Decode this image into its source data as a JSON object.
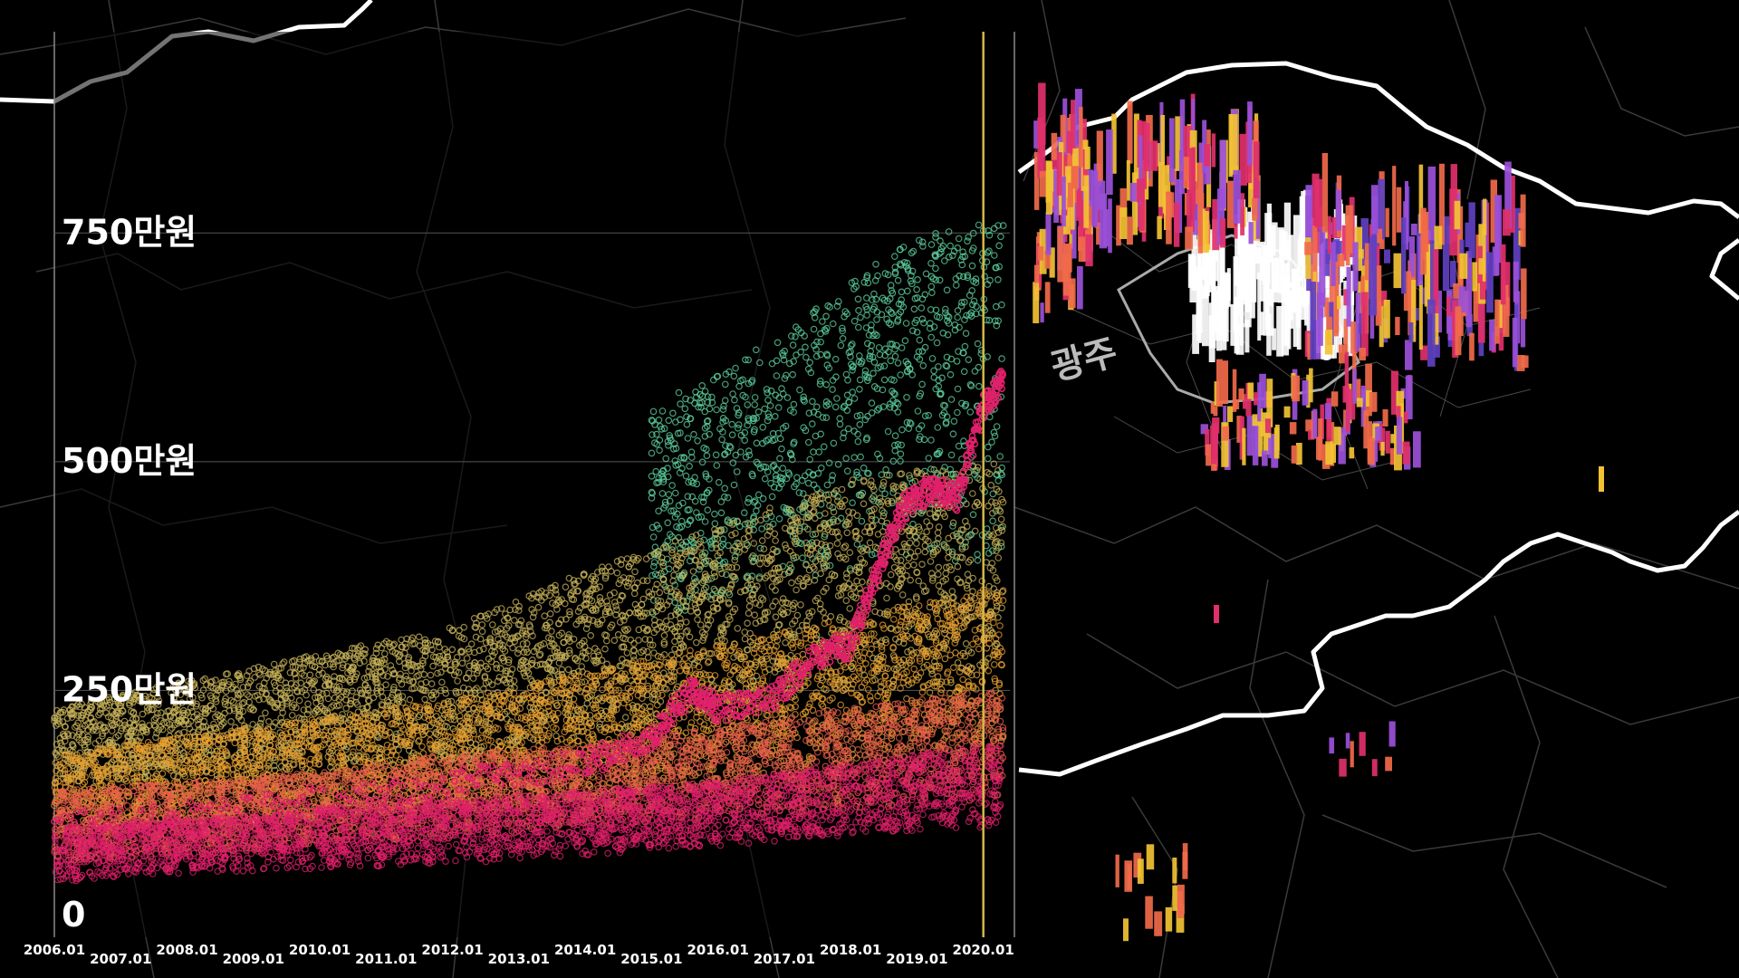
{
  "map": {
    "city_label": "광주",
    "background": "#000000",
    "boundary_color": "#ffffff",
    "district_line_color": "#3a3a3a"
  },
  "colors": {
    "high": "#5fd3a0",
    "mid_high": "#c9b45a",
    "mid": "#e8a030",
    "low": "#e8604a",
    "lowest": "#e0206a",
    "trend": "#e0206a",
    "marker": "#d4b84a",
    "bar_palette": [
      "#ffffff",
      "#f2c233",
      "#f06a4a",
      "#e0306a",
      "#9a50d8",
      "#6040c0"
    ]
  },
  "chart_data": {
    "type": "scatter",
    "title": "",
    "xlabel": "",
    "ylabel": "",
    "x_ticks": [
      "2006.01",
      "2007.01",
      "2008.01",
      "2009.01",
      "2010.01",
      "2011.01",
      "2012.01",
      "2013.01",
      "2014.01",
      "2015.01",
      "2016.01",
      "2017.01",
      "2018.01",
      "2019.01",
      "2020.01"
    ],
    "y_ticks": [
      {
        "value": 0,
        "label": "0"
      },
      {
        "value": 250,
        "label": "250만원"
      },
      {
        "value": 500,
        "label": "500만원"
      },
      {
        "value": 750,
        "label": "750만원"
      }
    ],
    "xlim": [
      2006.0,
      2020.4
    ],
    "ylim": [
      0,
      970
    ],
    "highlight_x": 2020.0,
    "grid": true,
    "series": [
      {
        "color_key": "high",
        "band": [
          [
            2015.0,
            330,
            560
          ],
          [
            2016.0,
            340,
            600
          ],
          [
            2017.0,
            370,
            640
          ],
          [
            2018.0,
            380,
            700
          ],
          [
            2019.0,
            400,
            750
          ],
          [
            2020.0,
            380,
            760
          ]
        ]
      },
      {
        "color_key": "mid_high",
        "band": [
          [
            2006.0,
            150,
            230
          ],
          [
            2008.0,
            150,
            260
          ],
          [
            2010.0,
            160,
            290
          ],
          [
            2012.0,
            170,
            320
          ],
          [
            2014.0,
            200,
            380
          ],
          [
            2016.0,
            230,
            430
          ],
          [
            2018.0,
            250,
            480
          ],
          [
            2020.0,
            260,
            500
          ]
        ]
      },
      {
        "color_key": "mid",
        "band": [
          [
            2006.0,
            90,
            180
          ],
          [
            2008.0,
            100,
            200
          ],
          [
            2010.0,
            110,
            220
          ],
          [
            2012.0,
            120,
            240
          ],
          [
            2014.0,
            130,
            270
          ],
          [
            2016.0,
            150,
            300
          ],
          [
            2018.0,
            170,
            330
          ],
          [
            2020.0,
            180,
            360
          ]
        ]
      },
      {
        "color_key": "low",
        "band": [
          [
            2006.0,
            60,
            140
          ],
          [
            2008.0,
            70,
            150
          ],
          [
            2010.0,
            80,
            160
          ],
          [
            2012.0,
            90,
            180
          ],
          [
            2014.0,
            100,
            190
          ],
          [
            2016.0,
            110,
            210
          ],
          [
            2018.0,
            120,
            230
          ],
          [
            2020.0,
            130,
            250
          ]
        ]
      },
      {
        "color_key": "lowest",
        "band": [
          [
            2006.0,
            40,
            100
          ],
          [
            2008.0,
            50,
            110
          ],
          [
            2010.0,
            55,
            120
          ],
          [
            2012.0,
            60,
            130
          ],
          [
            2014.0,
            70,
            140
          ],
          [
            2016.0,
            80,
            150
          ],
          [
            2018.0,
            90,
            170
          ],
          [
            2020.0,
            100,
            190
          ]
        ]
      }
    ],
    "trend_line": {
      "color_key": "trend",
      "points": [
        [
          2006.0,
          100
        ],
        [
          2009.0,
          120
        ],
        [
          2012.0,
          150
        ],
        [
          2014.0,
          170
        ],
        [
          2015.0,
          200
        ],
        [
          2015.6,
          250
        ],
        [
          2016.0,
          230
        ],
        [
          2016.8,
          240
        ],
        [
          2017.5,
          290
        ],
        [
          2018.0,
          300
        ],
        [
          2018.4,
          380
        ],
        [
          2018.8,
          450
        ],
        [
          2019.2,
          470
        ],
        [
          2019.6,
          460
        ],
        [
          2020.0,
          560
        ],
        [
          2020.3,
          590
        ]
      ]
    }
  }
}
